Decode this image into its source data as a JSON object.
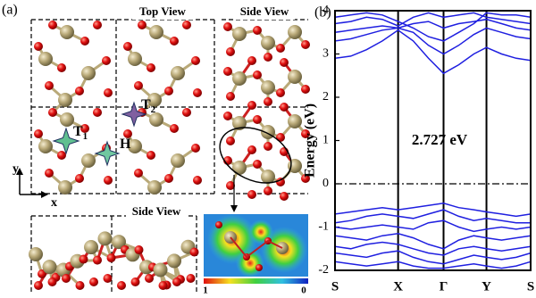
{
  "structure": {
    "panel_label": "(a)",
    "top_view": "Top View",
    "side_view_right": "Side View",
    "side_view_bottom": "Side View",
    "sites": [
      {
        "label": "T",
        "subscript": "1"
      },
      {
        "label": "T",
        "subscript": "2"
      },
      {
        "label": "H"
      }
    ],
    "axis_y": "y",
    "axis_x": "x",
    "colorbar_min_label": "1",
    "colorbar_max_label": "0"
  },
  "chart_data": {
    "type": "line",
    "panel_label": "(b)",
    "y_label": "Energy (eV)",
    "annotation": "2.727 eV",
    "color": "#1f1fe0",
    "x": [
      0,
      0.25,
      0.5,
      0.75,
      1.0,
      1.24,
      1.48,
      1.72,
      1.96,
      2.2,
      2.4,
      2.64,
      2.87,
      3.1
    ],
    "series": [
      {
        "values": [
          2.9,
          2.95,
          3.1,
          3.3,
          3.55,
          3.3,
          2.9,
          2.55,
          2.75,
          3.0,
          3.15,
          3.0,
          2.9,
          2.85
        ]
      },
      {
        "values": [
          3.3,
          3.35,
          3.45,
          3.55,
          3.6,
          3.5,
          3.2,
          3.0,
          3.2,
          3.45,
          3.6,
          3.5,
          3.4,
          3.35
        ]
      },
      {
        "values": [
          3.5,
          3.55,
          3.6,
          3.65,
          3.6,
          3.7,
          3.75,
          3.6,
          3.7,
          3.75,
          3.8,
          3.7,
          3.6,
          3.55
        ]
      },
      {
        "values": [
          3.7,
          3.75,
          3.85,
          3.8,
          3.65,
          3.85,
          3.95,
          3.85,
          3.9,
          3.95,
          3.85,
          3.8,
          3.75,
          3.7
        ]
      },
      {
        "values": [
          3.85,
          3.9,
          3.95,
          3.9,
          3.75,
          3.6,
          3.4,
          3.3,
          3.5,
          3.7,
          3.95,
          3.9,
          3.9,
          3.85
        ]
      },
      {
        "values": [
          -0.7,
          -0.65,
          -0.6,
          -0.55,
          -0.6,
          -0.55,
          -0.5,
          -0.45,
          -0.55,
          -0.6,
          -0.65,
          -0.7,
          -0.75,
          -0.7
        ]
      },
      {
        "values": [
          -0.9,
          -0.85,
          -0.75,
          -0.7,
          -0.75,
          -0.8,
          -0.7,
          -0.6,
          -0.75,
          -0.85,
          -0.8,
          -0.85,
          -0.9,
          -0.9
        ]
      },
      {
        "values": [
          -1.0,
          -1.05,
          -1.0,
          -0.95,
          -1.0,
          -1.05,
          -0.9,
          -0.85,
          -1.0,
          -1.1,
          -1.05,
          -1.0,
          -1.05,
          -1.0
        ]
      },
      {
        "values": [
          -1.2,
          -1.25,
          -1.3,
          -1.2,
          -1.15,
          -1.25,
          -1.4,
          -1.5,
          -1.3,
          -1.2,
          -1.25,
          -1.3,
          -1.25,
          -1.2
        ]
      },
      {
        "values": [
          -1.45,
          -1.5,
          -1.4,
          -1.35,
          -1.4,
          -1.5,
          -1.6,
          -1.65,
          -1.5,
          -1.45,
          -1.5,
          -1.55,
          -1.5,
          -1.45
        ]
      },
      {
        "values": [
          -1.6,
          -1.65,
          -1.7,
          -1.6,
          -1.55,
          -1.7,
          -1.8,
          -1.85,
          -1.75,
          -1.65,
          -1.7,
          -1.75,
          -1.7,
          -1.6
        ]
      },
      {
        "values": [
          -1.8,
          -1.85,
          -1.9,
          -1.85,
          -1.8,
          -1.9,
          -1.95,
          -1.95,
          -1.9,
          -1.85,
          -1.9,
          -1.95,
          -1.9,
          -1.8
        ]
      }
    ],
    "xlim": [
      0,
      3.1
    ],
    "xticks": [
      {
        "value": 0,
        "label": "S"
      },
      {
        "value": 1.0,
        "label": "X"
      },
      {
        "value": 1.72,
        "label": "Γ"
      },
      {
        "value": 2.4,
        "label": "Y"
      },
      {
        "value": 3.1,
        "label": "S"
      }
    ],
    "x_grid": true,
    "ylim": [
      -2,
      4
    ],
    "yticks": [
      -2,
      -1,
      0,
      1,
      2,
      3,
      4
    ],
    "reference_line": 0
  }
}
